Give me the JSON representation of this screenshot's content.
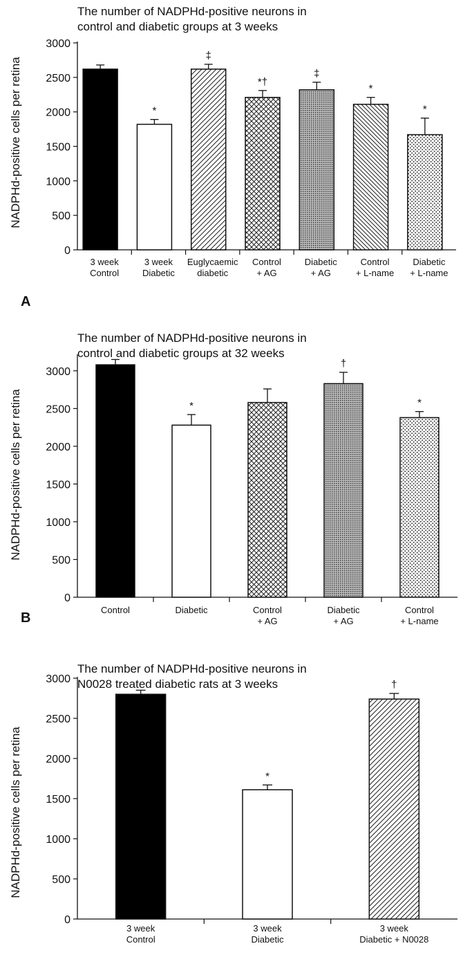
{
  "chart_data": [
    {
      "type": "bar",
      "title_lines": [
        "The number of NADPHd-positive neurons in",
        "control and diabetic groups at 3 weeks"
      ],
      "ylabel": "NADPHd-positive cells per retina",
      "panel_label": "A",
      "ylim": [
        0,
        3000
      ],
      "yticks": [
        0,
        500,
        1000,
        1500,
        2000,
        2500,
        3000
      ],
      "categories": [
        [
          "3 week",
          "Control"
        ],
        [
          "3 week",
          "Diabetic"
        ],
        [
          "Euglycaemic",
          "diabetic"
        ],
        [
          "Control",
          "+ AG"
        ],
        [
          "Diabetic",
          "+ AG"
        ],
        [
          "Control",
          "+ L-name"
        ],
        [
          "Diabetic",
          "+ L-name"
        ]
      ],
      "values": [
        2620,
        1820,
        2620,
        2210,
        2320,
        2110,
        1670
      ],
      "errors": [
        60,
        70,
        70,
        100,
        110,
        100,
        240
      ],
      "significance": [
        "",
        "*",
        "‡",
        "*†",
        "‡",
        "*",
        "*"
      ],
      "fills": [
        "solid-black",
        "white",
        "diagonal",
        "crosshatch",
        "dense-dots",
        "back-diagonal",
        "dots"
      ]
    },
    {
      "type": "bar",
      "title_lines": [
        "The number of NADPHd-positive neurons in",
        "control and diabetic groups at 32 weeks"
      ],
      "ylabel": "NADPHd-positive cells per retina",
      "panel_label": "B",
      "ylim": [
        0,
        3200
      ],
      "yticks": [
        0,
        500,
        1000,
        1500,
        2000,
        2500,
        3000
      ],
      "categories": [
        [
          "Control"
        ],
        [
          "Diabetic"
        ],
        [
          "Control",
          "+ AG"
        ],
        [
          "Diabetic",
          "+ AG"
        ],
        [
          "Control",
          "+ L-name"
        ]
      ],
      "values": [
        3080,
        2280,
        2580,
        2830,
        2380
      ],
      "errors": [
        70,
        140,
        180,
        150,
        80
      ],
      "significance": [
        "",
        "*",
        "",
        "†",
        "*"
      ],
      "fills": [
        "solid-black",
        "white",
        "crosshatch",
        "dense-dots",
        "dots"
      ]
    },
    {
      "type": "bar",
      "title_lines": [
        "The number of NADPHd-positive neurons in",
        "N0028 treated diabetic rats at 3 weeks"
      ],
      "ylabel": "NADPHd-positive cells per retina",
      "panel_label": "",
      "ylim": [
        0,
        3000
      ],
      "yticks": [
        0,
        500,
        1000,
        1500,
        2000,
        2500,
        3000
      ],
      "categories": [
        [
          "3 week",
          "Control"
        ],
        [
          "3 week",
          "Diabetic"
        ],
        [
          "3 week",
          "Diabetic + N0028"
        ]
      ],
      "values": [
        2800,
        1610,
        2740
      ],
      "errors": [
        50,
        60,
        70
      ],
      "significance": [
        "",
        "*",
        "†"
      ],
      "fills": [
        "solid-black",
        "white",
        "diagonal"
      ]
    }
  ]
}
